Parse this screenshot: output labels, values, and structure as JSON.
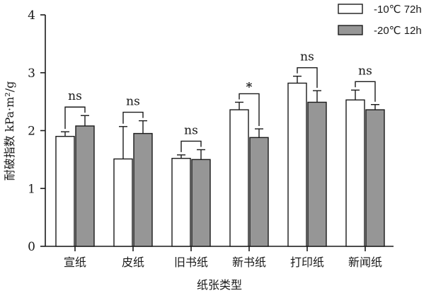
{
  "chart_data": {
    "type": "bar",
    "xlabel": "纸张类型",
    "ylabel": "耐破指数 kPa·m²/g",
    "ylim": [
      0,
      4
    ],
    "yticks": [
      0,
      1,
      2,
      3,
      4
    ],
    "categories": [
      "宣纸",
      "皮纸",
      "旧书纸",
      "新书纸",
      "打印纸",
      "新闻纸"
    ],
    "series": [
      {
        "name": "-10℃ 72h",
        "color": "#ffffff",
        "values": [
          1.9,
          1.51,
          1.52,
          2.36,
          2.82,
          2.53
        ],
        "errors": [
          0.08,
          0.56,
          0.06,
          0.13,
          0.12,
          0.17
        ]
      },
      {
        "name": "-20℃ 12h",
        "color": "#969696",
        "values": [
          2.08,
          1.95,
          1.5,
          1.88,
          2.49,
          2.36
        ],
        "errors": [
          0.18,
          0.22,
          0.17,
          0.15,
          0.2,
          0.09
        ]
      }
    ],
    "significance": [
      "ns",
      "ns",
      "ns",
      "*",
      "ns",
      "ns"
    ],
    "legend_position": "top-right",
    "grid": false
  }
}
